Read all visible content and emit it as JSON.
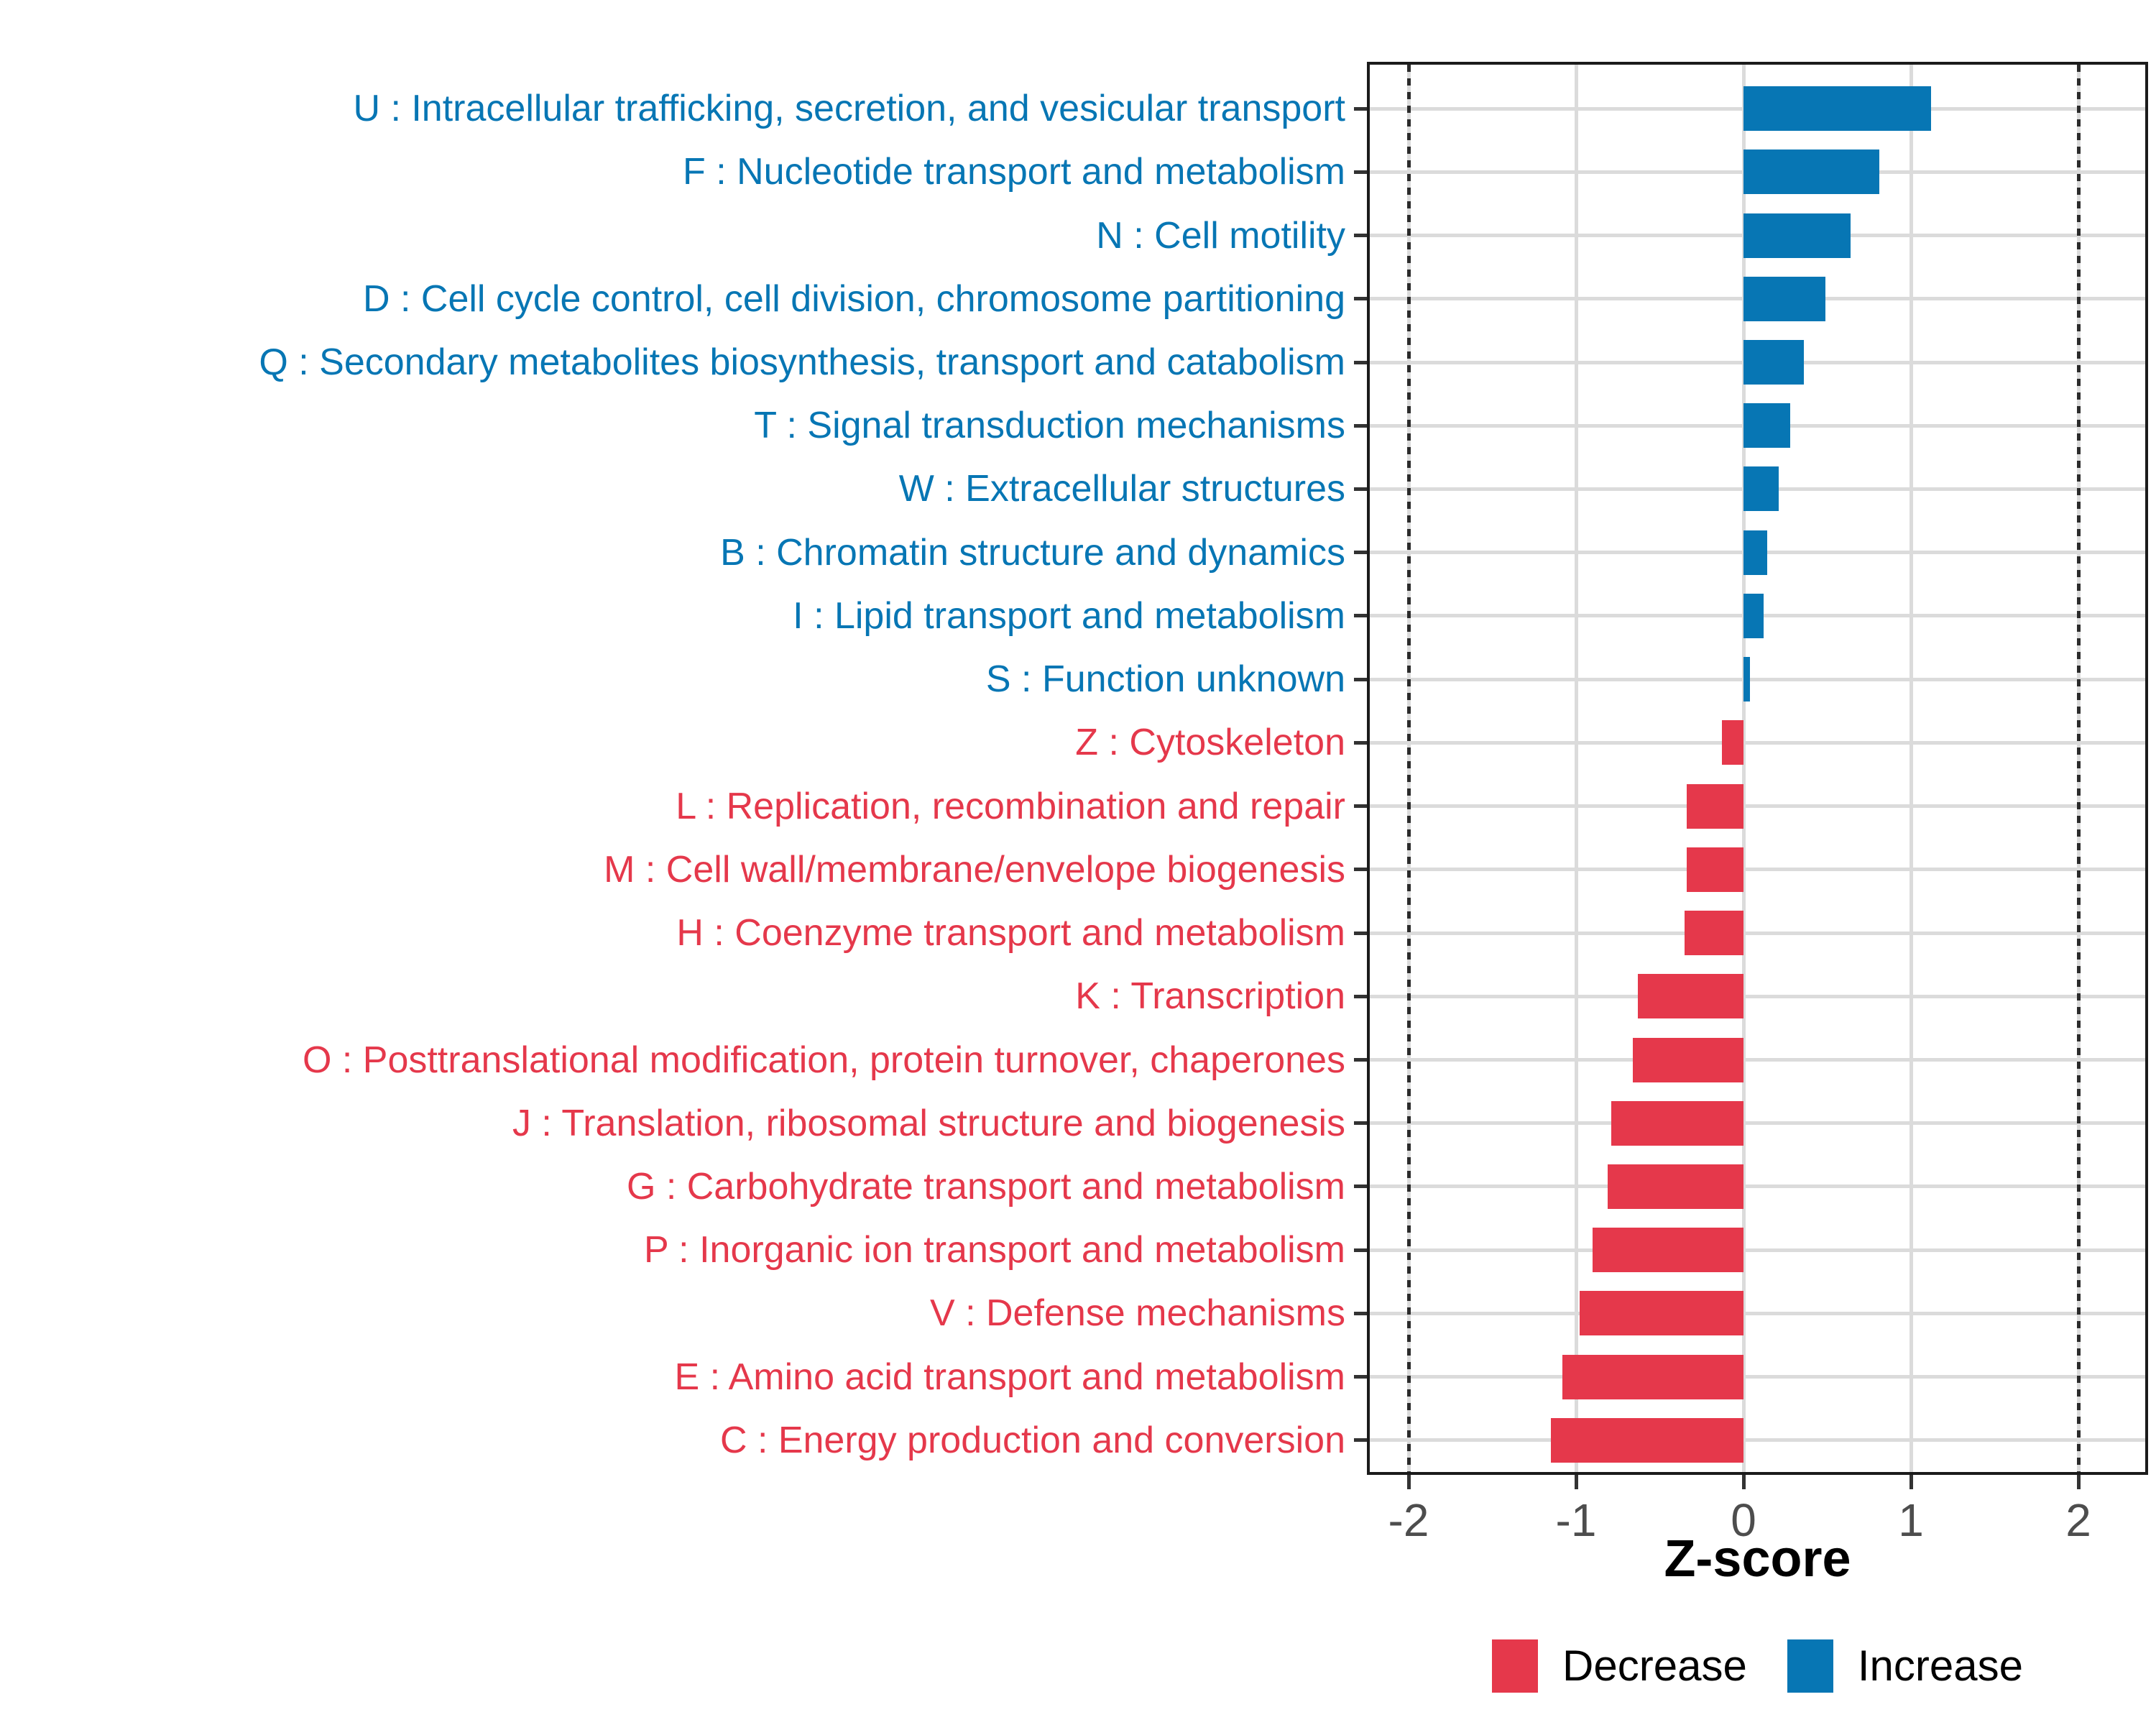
{
  "chart_data": {
    "type": "bar",
    "orientation": "horizontal",
    "xlabel": "Z-score",
    "x_ticks": [
      -2,
      -1,
      0,
      1,
      2
    ],
    "x_tick_labels": [
      "-2",
      "-1",
      "0",
      "1",
      "2"
    ],
    "reference_lines_dashed": [
      -2,
      2
    ],
    "xlim": [
      -2.25,
      2.4
    ],
    "grid": true,
    "bars": [
      {
        "label": "U : Intracellular trafficking, secretion, and vesicular transport",
        "value": 1.12,
        "group": "Increase"
      },
      {
        "label": "F : Nucleotide transport and metabolism",
        "value": 0.81,
        "group": "Increase"
      },
      {
        "label": "N : Cell motility",
        "value": 0.64,
        "group": "Increase"
      },
      {
        "label": "D : Cell cycle control, cell division, chromosome partitioning",
        "value": 0.49,
        "group": "Increase"
      },
      {
        "label": "Q : Secondary metabolites biosynthesis, transport and catabolism",
        "value": 0.36,
        "group": "Increase"
      },
      {
        "label": "T : Signal transduction mechanisms",
        "value": 0.28,
        "group": "Increase"
      },
      {
        "label": "W : Extracellular structures",
        "value": 0.21,
        "group": "Increase"
      },
      {
        "label": "B : Chromatin structure and dynamics",
        "value": 0.14,
        "group": "Increase"
      },
      {
        "label": "I : Lipid transport and metabolism",
        "value": 0.12,
        "group": "Increase"
      },
      {
        "label": "S : Function unknown",
        "value": 0.04,
        "group": "Increase"
      },
      {
        "label": "Z : Cytoskeleton",
        "value": -0.13,
        "group": "Decrease"
      },
      {
        "label": "L : Replication, recombination and repair",
        "value": -0.34,
        "group": "Decrease"
      },
      {
        "label": "M : Cell wall/membrane/envelope biogenesis",
        "value": -0.34,
        "group": "Decrease"
      },
      {
        "label": "H : Coenzyme transport and metabolism",
        "value": -0.35,
        "group": "Decrease"
      },
      {
        "label": "K : Transcription",
        "value": -0.63,
        "group": "Decrease"
      },
      {
        "label": "O : Posttranslational modification, protein turnover, chaperones",
        "value": -0.66,
        "group": "Decrease"
      },
      {
        "label": "J : Translation, ribosomal structure and biogenesis",
        "value": -0.79,
        "group": "Decrease"
      },
      {
        "label": "G : Carbohydrate transport and metabolism",
        "value": -0.81,
        "group": "Decrease"
      },
      {
        "label": "P : Inorganic ion transport and metabolism",
        "value": -0.9,
        "group": "Decrease"
      },
      {
        "label": "V : Defense mechanisms",
        "value": -0.98,
        "group": "Decrease"
      },
      {
        "label": "E : Amino acid transport and metabolism",
        "value": -1.08,
        "group": "Decrease"
      },
      {
        "label": "C : Energy production and conversion",
        "value": -1.15,
        "group": "Decrease"
      }
    ],
    "legend": {
      "position": "bottom",
      "entries": [
        {
          "label": "Decrease",
          "color": "#E5384B"
        },
        {
          "label": "Increase",
          "color": "#0776B4"
        }
      ]
    },
    "colors": {
      "increase": "#0776B4",
      "decrease": "#E5384B",
      "grid": "#DBDBDB",
      "axis_text": "#4D4D4D",
      "panel_border": "#1B1B1B"
    }
  }
}
